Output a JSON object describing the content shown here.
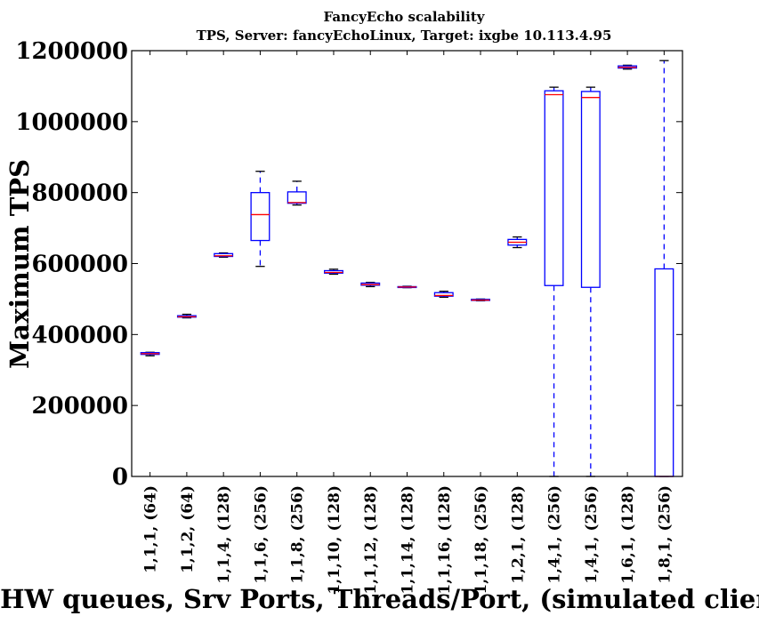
{
  "chart_data": {
    "type": "boxplot",
    "title": "FancyEcho scalability",
    "subtitle": "TPS, Server: fancyEchoLinux, Target: ixgbe 10.113.4.95",
    "xlabel": "HW queues, Srv Ports, Threads/Port, (simulated clients)",
    "ylabel": "Maximum TPS",
    "ylim": [
      0,
      1200000
    ],
    "yticks": [
      "0",
      "200000",
      "400000",
      "600000",
      "800000",
      "1000000",
      "1200000"
    ],
    "ytick_values": [
      0,
      200000,
      400000,
      600000,
      800000,
      1000000,
      1200000
    ],
    "categories": [
      "1,1,1, (64)",
      "1,1,2, (64)",
      "1,1,4, (128)",
      "1,1,6, (256)",
      "1,1,8, (256)",
      "1,1,10, (128)",
      "1,1,12, (128)",
      "1,1,14, (128)",
      "1,1,16, (128)",
      "1,1,18, (256)",
      "1,2,1, (128)",
      "1,4,1, (256)",
      "1,4,1, (256)",
      "1,6,1, (128)",
      "1,8,1, (256)"
    ],
    "boxes": [
      {
        "whislo": 340000,
        "q1": 344000,
        "med": 346000,
        "q3": 349000,
        "whishi": 350000
      },
      {
        "whislo": 447000,
        "q1": 449000,
        "med": 450000,
        "q3": 453000,
        "whishi": 457000
      },
      {
        "whislo": 618000,
        "q1": 620000,
        "med": 622000,
        "q3": 628000,
        "whishi": 630000
      },
      {
        "whislo": 592000,
        "q1": 665000,
        "med": 738000,
        "q3": 800000,
        "whishi": 860000
      },
      {
        "whislo": 765000,
        "q1": 770000,
        "med": 772000,
        "q3": 802000,
        "whishi": 832000
      },
      {
        "whislo": 570000,
        "q1": 573000,
        "med": 575000,
        "q3": 580000,
        "whishi": 584000
      },
      {
        "whislo": 535000,
        "q1": 539000,
        "med": 541000,
        "q3": 545000,
        "whishi": 547000
      },
      {
        "whislo": 532000,
        "q1": 533000,
        "med": 534000,
        "q3": 535000,
        "whishi": 536000
      },
      {
        "whislo": 505000,
        "q1": 508000,
        "med": 510000,
        "q3": 518000,
        "whishi": 522000
      },
      {
        "whislo": 495000,
        "q1": 496000,
        "med": 497000,
        "q3": 499000,
        "whishi": 500000
      },
      {
        "whislo": 645000,
        "q1": 652000,
        "med": 660000,
        "q3": 668000,
        "whishi": 675000
      },
      {
        "whislo": 0,
        "q1": 538000,
        "med": 1076000,
        "q3": 1087000,
        "whishi": 1097000
      },
      {
        "whislo": 0,
        "q1": 533000,
        "med": 1068000,
        "q3": 1085000,
        "whishi": 1097000
      },
      {
        "whislo": 1148000,
        "q1": 1151000,
        "med": 1153000,
        "q3": 1157000,
        "whishi": 1159000
      },
      {
        "whislo": 0,
        "q1": 0,
        "med": 0,
        "q3": 585000,
        "whishi": 1172000
      }
    ],
    "grid": false,
    "colors": {
      "box": "#0000ff",
      "median": "#ff0000",
      "axes": "#000000"
    }
  }
}
